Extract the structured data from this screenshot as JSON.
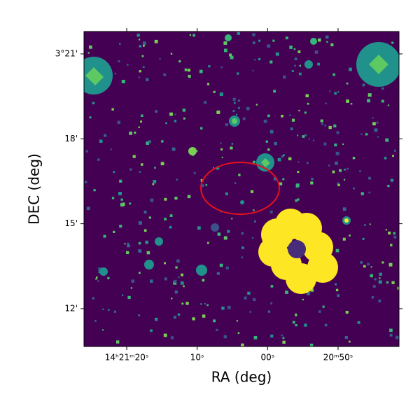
{
  "chart_data": {
    "type": "image",
    "xlabel": "RA (deg)",
    "ylabel": "DEC (deg)",
    "xlim": [
      215.3586,
      215.1723
    ],
    "ylim": [
      3.1777,
      3.3632
    ],
    "xticks": [
      {
        "value": 215.33333,
        "label": "14ʰ21ᵐ20ˢ"
      },
      {
        "value": 215.29167,
        "label": "10ˢ"
      },
      {
        "value": 215.25,
        "label": "00ˢ"
      },
      {
        "value": 215.20833,
        "label": "20ᵐ50ˢ"
      }
    ],
    "yticks": [
      {
        "value": 3.35,
        "label": "3°21'"
      },
      {
        "value": 3.3,
        "label": "18'"
      },
      {
        "value": 3.25,
        "label": "15'"
      },
      {
        "value": 3.2,
        "label": "12'"
      }
    ]
  }
}
